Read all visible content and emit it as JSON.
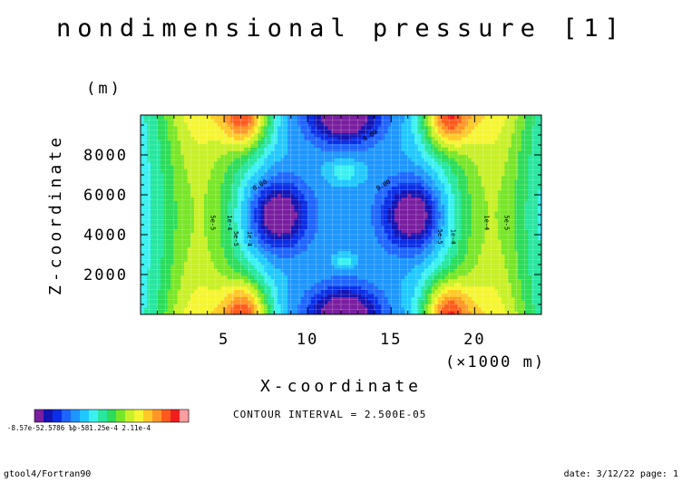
{
  "chart_data": {
    "type": "heatmap",
    "title": "nondimensional pressure [1]",
    "xlabel": "X-coordinate",
    "xunit": "(×1000 m)",
    "ylabel": "Z-coordinate",
    "yunit": "(m)",
    "xlim": [
      0,
      24
    ],
    "ylim": [
      0,
      10000
    ],
    "x_ticks": [
      5,
      10,
      15,
      20
    ],
    "x_tick_labels": [
      "5",
      "10",
      "15",
      "20"
    ],
    "y_ticks": [
      2000,
      4000,
      6000,
      8000
    ],
    "y_tick_labels": [
      "2000",
      "4000",
      "6000",
      "8000"
    ],
    "contour_interval_text": "CONTOUR INTERVAL = 2.500E-05",
    "contour_labels": [
      {
        "text": "0.00",
        "x": 13.8,
        "z": 8900
      },
      {
        "text": "0.00",
        "x": 14.6,
        "z": 6400
      },
      {
        "text": "0.00",
        "x": 7.2,
        "z": 6400
      },
      {
        "text": "5e-5",
        "x": 4.2,
        "z": 4600
      },
      {
        "text": "1e-4",
        "x": 5.2,
        "z": 4600
      },
      {
        "text": "5e-5",
        "x": 17.8,
        "z": 3900
      },
      {
        "text": "1e-4",
        "x": 18.6,
        "z": 3900
      },
      {
        "text": "1e-4",
        "x": 20.6,
        "z": 4600
      },
      {
        "text": "5e-5",
        "x": 21.8,
        "z": 4600
      },
      {
        "text": "5e-5",
        "x": 5.6,
        "z": 3800
      },
      {
        "text": "1e-4",
        "x": 6.4,
        "z": 3800
      }
    ],
    "colorbar": {
      "colors": [
        "#7a1fa0",
        "#1414b4",
        "#0b2ee6",
        "#1e64ff",
        "#1e96ff",
        "#21c8ff",
        "#3cf0f0",
        "#28e6a0",
        "#2cdc5a",
        "#78e628",
        "#c8f028",
        "#f5f532",
        "#ffc828",
        "#ff9628",
        "#ff5a1e",
        "#f01e1e",
        "#ff9ea0"
      ],
      "labels": [
        "-8.57e-5",
        "2.57e-5",
        "3.86e-5",
        "1.25e-4",
        "2.11e-4"
      ],
      "label_text": "-8.57e-52.5786 Ъþ-581.25e-4  2.11e-4"
    }
  },
  "footer": {
    "left": "gtool4/Fortran90",
    "right": "date: 3/12/22 page: 1"
  }
}
